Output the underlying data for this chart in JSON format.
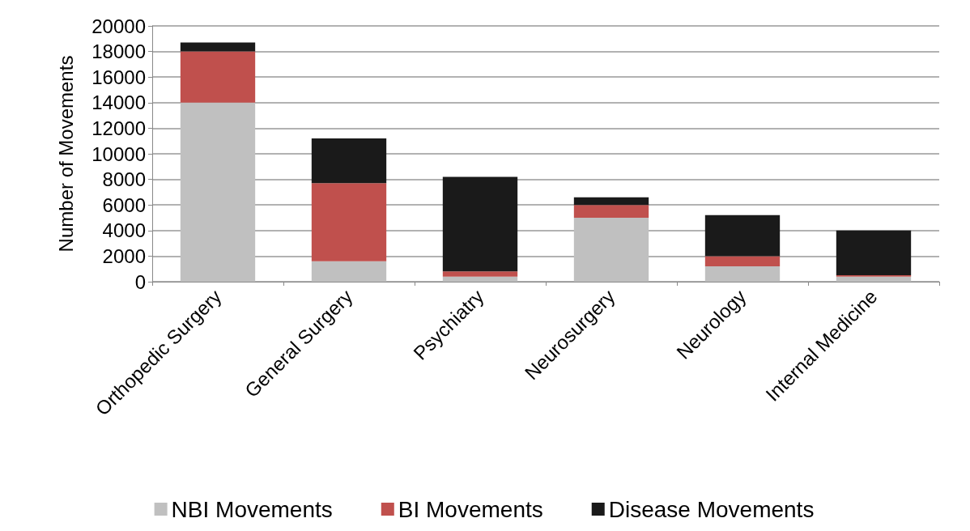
{
  "chart_data": {
    "type": "bar",
    "stacked": true,
    "ylabel": "Number of Movements",
    "categories": [
      "Orthopedic Surgery",
      "General Surgery",
      "Psychiatry",
      "Neurosurgery",
      "Neurology",
      "Internal Medicine"
    ],
    "series": [
      {
        "name": "NBI Movements",
        "color": "#c0c0c0",
        "values": [
          14000,
          1600,
          400,
          5000,
          1200,
          400
        ]
      },
      {
        "name": "BI Movements",
        "color": "#c0504d",
        "values": [
          4000,
          6100,
          400,
          1000,
          800,
          100
        ]
      },
      {
        "name": "Disease Movements",
        "color": "#1a1a1a",
        "values": [
          700,
          3500,
          7400,
          600,
          3200,
          3500
        ]
      }
    ],
    "ylim": [
      0,
      20000
    ],
    "yticks": [
      0,
      2000,
      4000,
      6000,
      8000,
      10000,
      12000,
      14000,
      16000,
      18000,
      20000
    ],
    "grid": "y",
    "legend": "bottom"
  }
}
